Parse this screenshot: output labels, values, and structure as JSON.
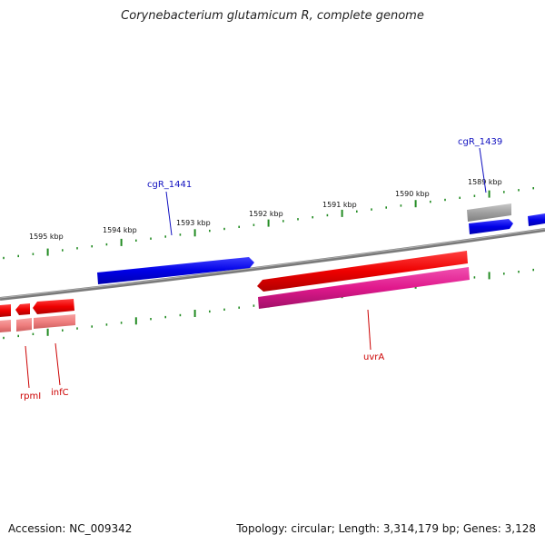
{
  "title": "Corynebacterium glutamicum R, complete genome",
  "footer": {
    "accession": "Accession: NC_009342",
    "stats": "Topology: circular; Length: 3,314,179 bp; Genes: 3,128"
  },
  "scale_labels": [
    "1595 kbp",
    "1594 kbp",
    "1593 kbp",
    "1592 kbp",
    "1591 kbp",
    "1590 kbp",
    "1589 kbp"
  ],
  "gene_labels": {
    "cgR_1441": "cgR_1441",
    "cgR_1439": "cgR_1439",
    "rpmI": "rpmI",
    "infC": "infC",
    "uvrA": "uvrA"
  },
  "colors": {
    "forward_cds": "#0000e6",
    "reverse_cds": "#ee0000",
    "reverse_light": "#f08080",
    "pink": "#e0188c",
    "gray": "#999999",
    "backbone": "#808080",
    "tick": "#228b22",
    "label_blue": "#1010c0",
    "label_red": "#cc0000"
  }
}
